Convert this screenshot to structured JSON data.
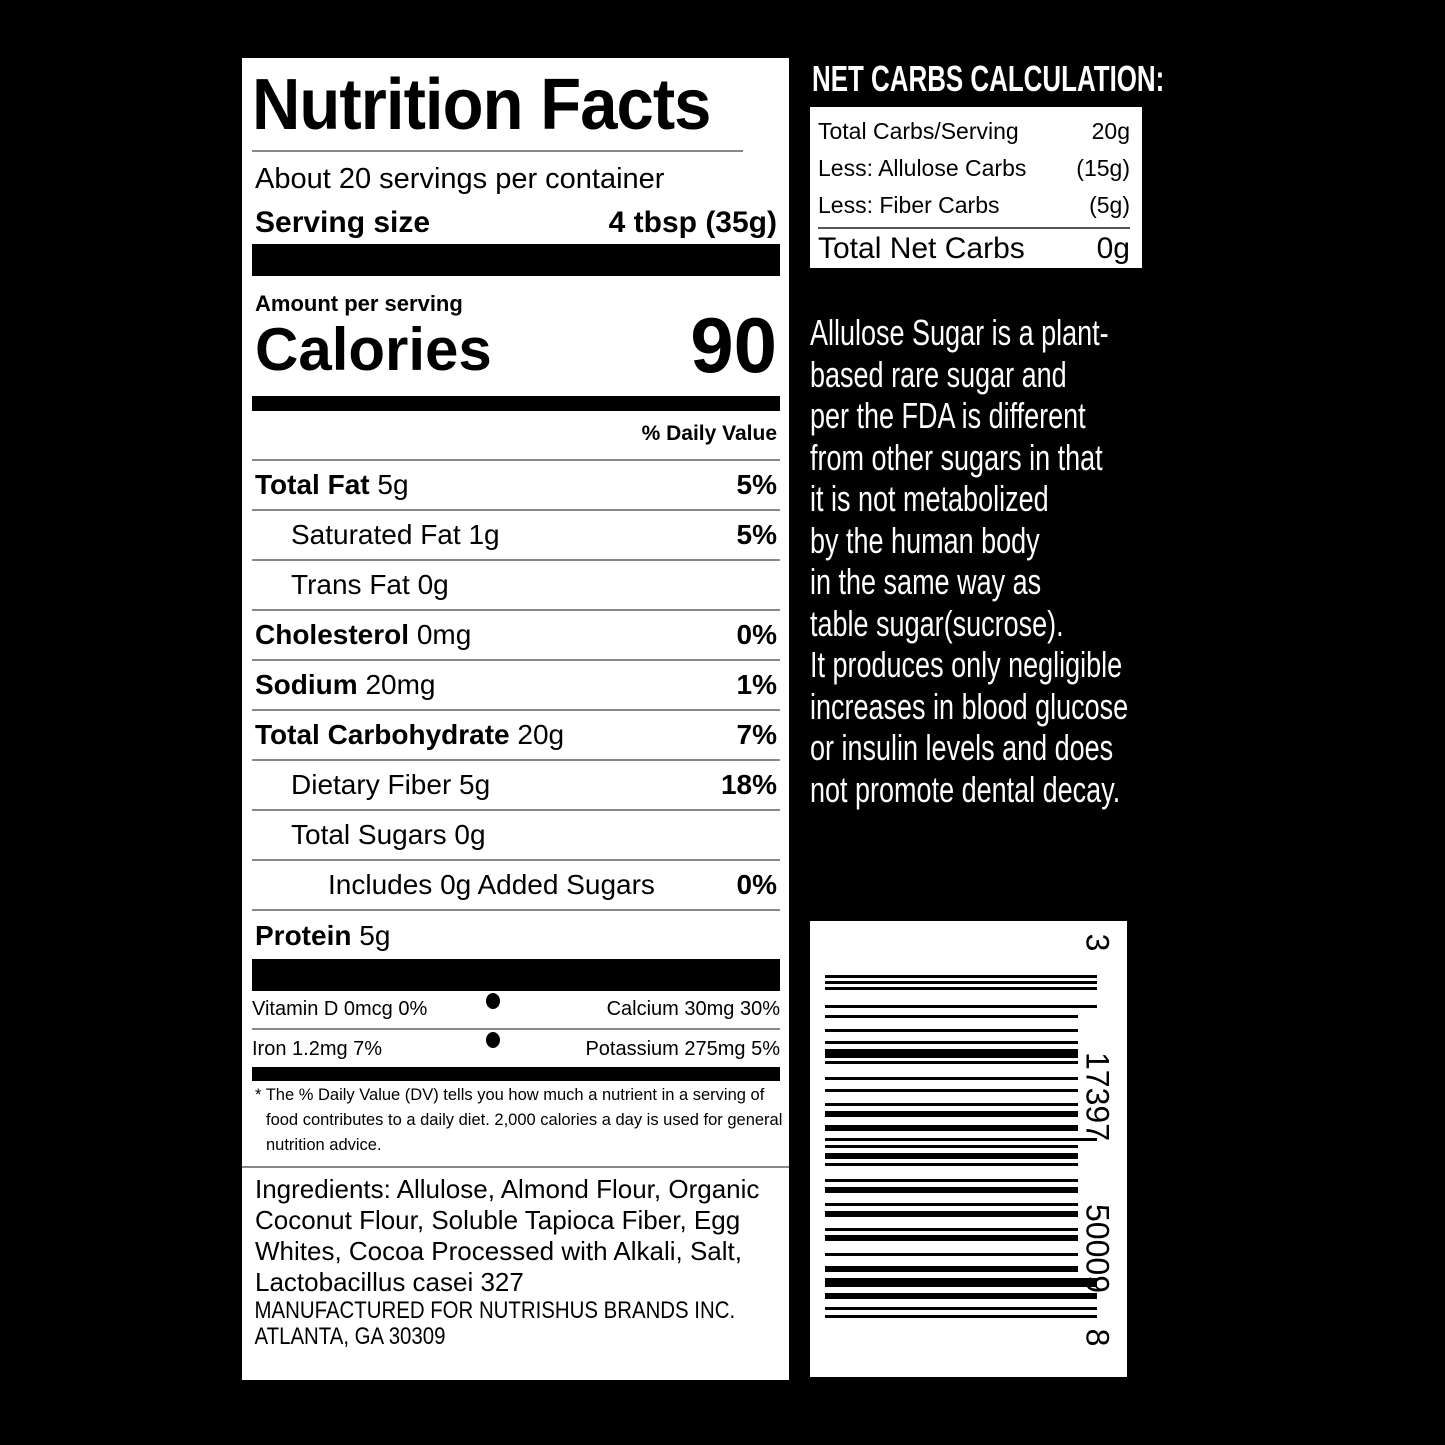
{
  "nutrition": {
    "title": "Nutrition Facts",
    "servings": "About 20 servings per container",
    "serving_size_label": "Serving size",
    "serving_size_value": "4 tbsp (35g)",
    "amount_per_serving": "Amount per serving",
    "calories_label": "Calories",
    "calories_value": "90",
    "daily_value_header": "% Daily Value",
    "rows": [
      {
        "name": "Total Fat",
        "amount": "5g",
        "dv": "5%"
      },
      {
        "name": "Saturated Fat",
        "amount": "1g",
        "dv": "5%"
      },
      {
        "name": "Trans Fat",
        "amount": "0g",
        "dv": ""
      },
      {
        "name": "Cholesterol",
        "amount": "0mg",
        "dv": "0%"
      },
      {
        "name": "Sodium",
        "amount": "20mg",
        "dv": "1%"
      },
      {
        "name": "Total Carbohydrate",
        "amount": "20g",
        "dv": "7%"
      },
      {
        "name": "Dietary Fiber",
        "amount": "5g",
        "dv": "18%"
      },
      {
        "name": "Total Sugars",
        "amount": "0g",
        "dv": ""
      },
      {
        "name": "Includes 0g Added Sugars",
        "amount": "",
        "dv": "0%"
      },
      {
        "name": "Protein",
        "amount": "5g",
        "dv": ""
      }
    ],
    "vitamins": [
      {
        "left": "Vitamin D 0mcg 0%",
        "right": "Calcium 30mg 30%"
      },
      {
        "left": "Iron 1.2mg 7%",
        "right": "Potassium 275mg 5%"
      }
    ],
    "footnote": "* The % Daily Value (DV) tells you how much a nutrient in a serving of food contributes to a daily diet. 2,000 calories a day is used for general nutrition advice.",
    "ingredients": "Ingredients: Allulose, Almond Flour, Organic Coconut Flour, Soluble Tapioca Fiber, Egg Whites, Cocoa Processed with Alkali, Salt, Lactobacillus casei 327",
    "manufacturer_line1": "MANUFACTURED FOR NUTRISHUS BRANDS INC.",
    "manufacturer_line2": "ATLANTA, GA 30309"
  },
  "net_carbs": {
    "heading": "NET CARBS CALCULATION:",
    "rows": [
      {
        "label": "Total Carbs/Serving",
        "value": "20g"
      },
      {
        "label": "Less: Allulose Carbs",
        "value": "(15g)"
      },
      {
        "label": "Less: Fiber Carbs",
        "value": "(5g)"
      }
    ],
    "total_label": "Total Net Carbs",
    "total_value": "0g"
  },
  "description_lines": [
    "Allulose Sugar is a plant-",
    "based rare sugar and",
    "per the FDA is different",
    "from other sugars in that",
    "it is not metabolized",
    "by the human body",
    "in the same way as",
    "table sugar(sucrose).",
    "It produces only negligible",
    "increases in blood glucose",
    "or insulin levels and does",
    "not promote dental decay."
  ],
  "barcode": {
    "digits": [
      "8",
      "50009",
      "17397",
      "3"
    ]
  }
}
